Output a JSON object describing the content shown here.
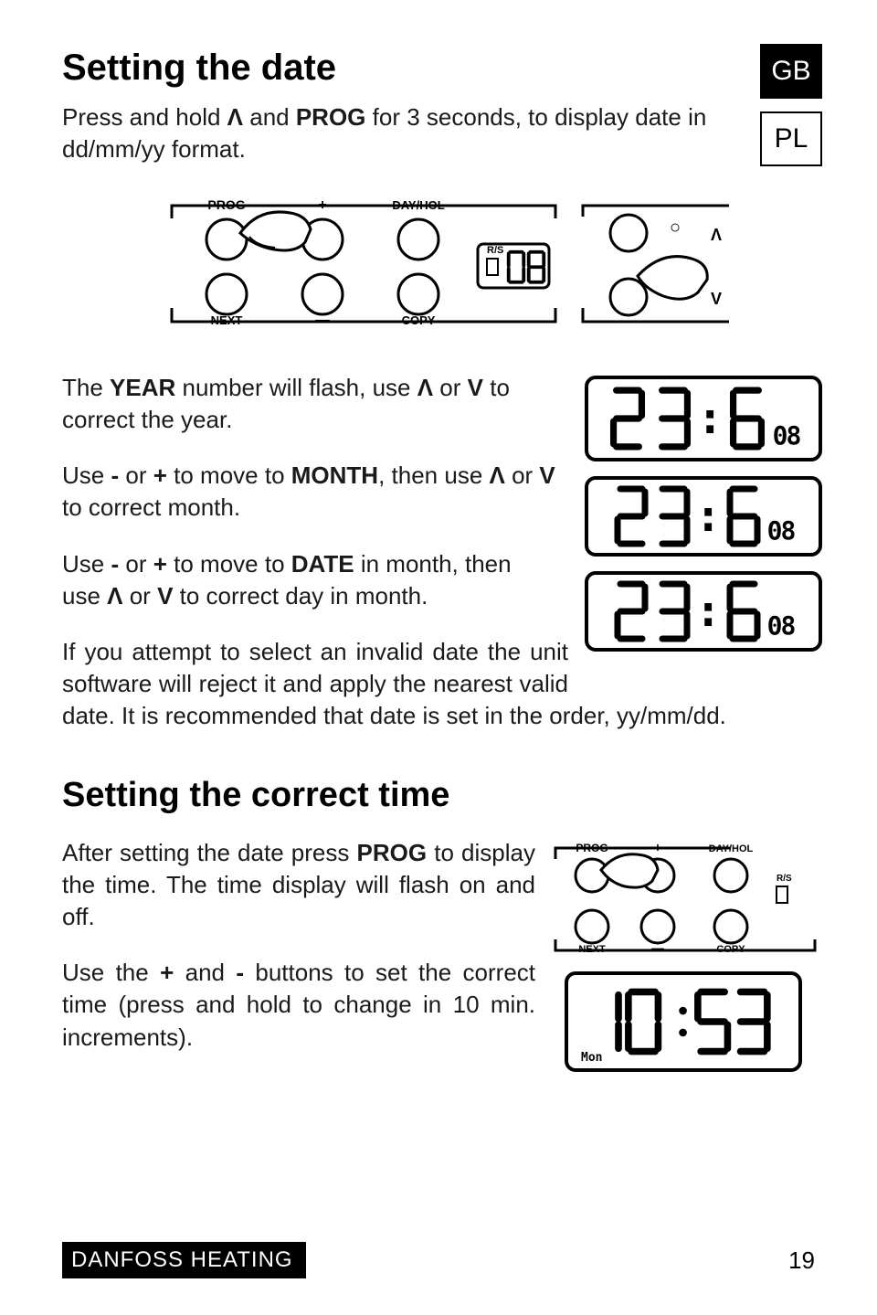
{
  "lang_tabs": {
    "active": "GB",
    "inactive": "PL"
  },
  "heading1": "Setting the date",
  "intro_html": "Press and hold <span class='b'>Λ</span> and <span class='b'>PROG</span> for 3 seconds, to display date in dd/mm/yy format.",
  "year_html": "The <span class='b'>YEAR</span> number will flash, use <span class='b'>Λ</span> or <span class='b'>V</span> to correct the year.",
  "month_html": "Use <span class='b'>-</span> or <span class='b'>+</span> to move to <span class='b'>MONTH</span>, then use <span class='b'>Λ</span> or <span class='b'>V</span> to correct month.",
  "date_html": "Use <span class='b'>-</span> or <span class='b'>+</span> to move to <span class='b'>DATE</span> in month, then use <span class='b'>Λ</span> or <span class='b'>V</span> to correct day in month.",
  "invalid_text": "If you attempt to select an invalid date the unit software will reject it and apply the nearest valid date. It is recommended that date is set in the order, yy/mm/dd.",
  "heading2": "Setting the correct time",
  "time_intro_html": "After setting the date press <span class='b'>PROG</span> to display the time. The time display will flash on and off.",
  "time_set_html": "Use the <span class='b'>+</span> and <span class='b'>-</span> buttons to set the correct time (press and hold to change in 10 min. increments).",
  "footer": {
    "brand": "DANFOSS HEATING",
    "page": "19"
  },
  "panel_labels": {
    "prog": "PROG",
    "plus": "+",
    "dayhol": "DAY/HOL",
    "next": "NEXT",
    "minus": "—",
    "copy": "COPY",
    "rs": "R/S",
    "up": "Λ",
    "dn": "V",
    "circle": "○"
  },
  "panel_lcd": "08",
  "lcd_triplet": {
    "dd": "23",
    "mm": "6",
    "yy": "08"
  },
  "time_lcd": {
    "value": "10:53",
    "day": "Mon"
  },
  "colors": {
    "fg": "#000000",
    "bg": "#ffffff"
  }
}
